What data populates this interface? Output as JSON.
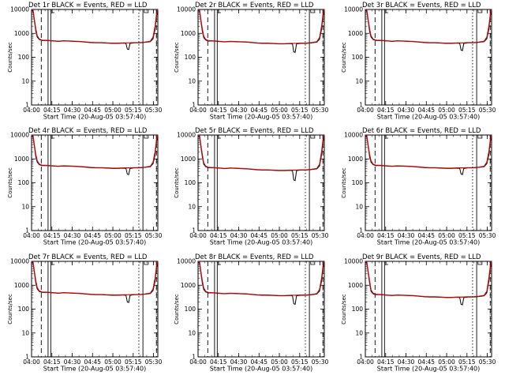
{
  "chart_data": {
    "type": "line",
    "layout": "3x3 grid of panels",
    "title_suffix": " BLACK = Events, RED = LLD",
    "xlabel": "Start Time (20-Aug-05 03:57:40)",
    "ylabel": "Counts/sec",
    "yscale": "log",
    "ylim": [
      1,
      10000
    ],
    "y_tick_labels": [
      "1",
      "10",
      "100",
      "1000",
      "10000"
    ],
    "x_tick_labels": [
      "04:00",
      "04:15",
      "04:30",
      "04:45",
      "05:00",
      "05:15",
      "05:30"
    ],
    "x_tick_minutes": [
      2.33,
      17.33,
      32.33,
      47.33,
      62.33,
      77.33,
      92.33
    ],
    "xlim_minutes": [
      2.33,
      95.5
    ],
    "markers": [
      {
        "style": "dashed",
        "x_minute": 9.5
      },
      {
        "style": "solid",
        "x_minute": 14.5
      },
      {
        "style": "solid",
        "x_minute": 16.5
      },
      {
        "style": "dotted",
        "x_minute": 81.5
      },
      {
        "style": "solid",
        "x_minute": 84.5
      },
      {
        "style": "dashed",
        "x_minute": 94.5
      }
    ],
    "series": [
      {
        "color": "#000000",
        "points": [
          [
            2.33,
            10000
          ],
          [
            3.5,
            8000
          ],
          [
            4.5,
            3000
          ],
          [
            5.5,
            1200
          ],
          [
            6.5,
            700
          ],
          [
            8,
            550
          ],
          [
            10,
            500
          ],
          [
            14,
            500
          ],
          [
            18,
            480
          ],
          [
            22,
            460
          ],
          [
            26,
            480
          ],
          [
            30,
            470
          ],
          [
            34,
            460
          ],
          [
            38,
            450
          ],
          [
            42,
            430
          ],
          [
            46,
            410
          ],
          [
            50,
            400
          ],
          [
            54,
            400
          ],
          [
            58,
            390
          ],
          [
            62,
            380
          ],
          [
            66,
            380
          ],
          [
            70,
            390
          ],
          [
            72,
            380
          ],
          [
            73,
            220
          ],
          [
            74,
            210
          ],
          [
            75,
            380
          ],
          [
            78,
            400
          ],
          [
            82,
            400
          ],
          [
            86,
            420
          ],
          [
            90,
            450
          ],
          [
            92,
            600
          ],
          [
            93.5,
            1500
          ],
          [
            94.5,
            5000
          ],
          [
            95.5,
            10000
          ]
        ]
      },
      {
        "color": "#cc0000",
        "points": [
          [
            2.33,
            10000
          ],
          [
            3.5,
            9000
          ],
          [
            4.5,
            3500
          ],
          [
            5.5,
            1500
          ],
          [
            6.5,
            800
          ],
          [
            8,
            580
          ],
          [
            10,
            520
          ],
          [
            14,
            510
          ],
          [
            18,
            490
          ],
          [
            22,
            470
          ],
          [
            26,
            490
          ],
          [
            30,
            480
          ],
          [
            34,
            470
          ],
          [
            38,
            460
          ],
          [
            42,
            440
          ],
          [
            46,
            420
          ],
          [
            50,
            410
          ],
          [
            54,
            410
          ],
          [
            58,
            400
          ],
          [
            62,
            390
          ],
          [
            66,
            390
          ],
          [
            70,
            400
          ],
          [
            74,
            400
          ],
          [
            78,
            410
          ],
          [
            82,
            410
          ],
          [
            86,
            430
          ],
          [
            90,
            470
          ],
          [
            92,
            700
          ],
          [
            93.5,
            2000
          ],
          [
            94.5,
            6000
          ],
          [
            95.5,
            10000
          ]
        ]
      }
    ],
    "panels": [
      {
        "title": "Det 1r",
        "scale": 1.0,
        "dip_scale": 1.0
      },
      {
        "title": "Det 2r",
        "scale": 0.95,
        "dip_scale": 0.8
      },
      {
        "title": "Det 3r",
        "scale": 1.0,
        "dip_scale": 0.9
      },
      {
        "title": "Det 4r",
        "scale": 1.05,
        "dip_scale": 1.0
      },
      {
        "title": "Det 5r",
        "scale": 0.85,
        "dip_scale": 0.7
      },
      {
        "title": "Det 6r",
        "scale": 1.05,
        "dip_scale": 1.0
      },
      {
        "title": "Det 7r",
        "scale": 1.0,
        "dip_scale": 0.9
      },
      {
        "title": "Det 8r",
        "scale": 0.95,
        "dip_scale": 0.8
      },
      {
        "title": "Det 9r",
        "scale": 0.8,
        "dip_scale": 0.9
      }
    ]
  }
}
